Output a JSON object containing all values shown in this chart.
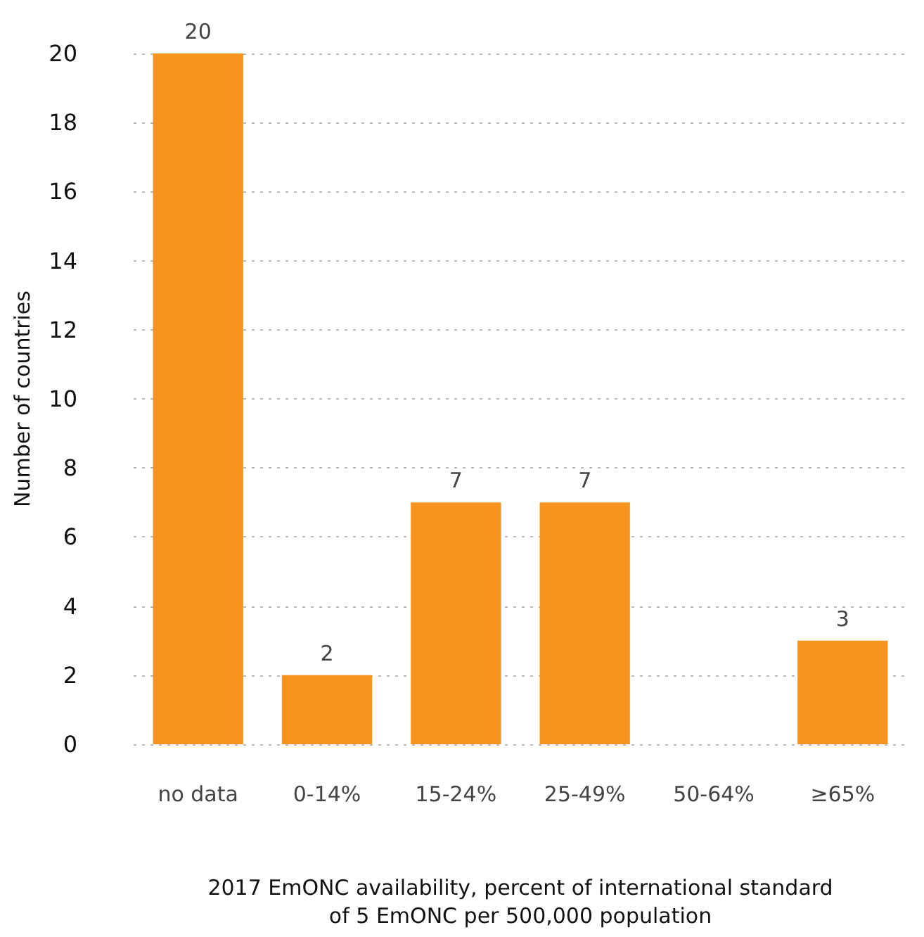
{
  "chart_data": {
    "type": "bar",
    "xlabel": "2017 EmONC availability, percent of international standard\nof 5 EmONC per 500,000 population",
    "ylabel": "Number of countries",
    "categories": [
      "no data",
      "0-14%",
      "15-24%",
      "25-49%",
      "50-64%",
      "≥65%"
    ],
    "values": [
      20,
      2,
      7,
      7,
      0,
      3
    ],
    "value_labels": [
      "20",
      "2",
      "7",
      "7",
      null,
      "3"
    ],
    "color": "#f7941d",
    "ylim": [
      0,
      20
    ],
    "yticks": [
      0,
      2,
      4,
      6,
      8,
      10,
      12,
      14,
      16,
      18,
      20
    ],
    "grid": "y"
  }
}
